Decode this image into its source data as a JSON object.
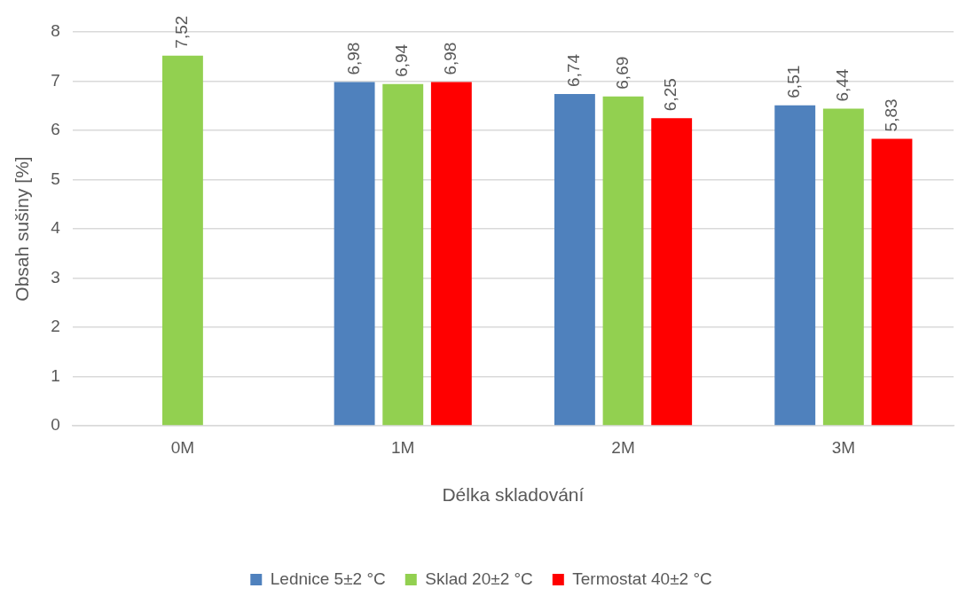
{
  "chart_data": {
    "type": "bar",
    "xlabel": "Délka skladování",
    "ylabel": "Obsah sušiny [%]",
    "categories": [
      "0M",
      "1M",
      "2M",
      "3M"
    ],
    "series": [
      {
        "name": "Lednice 5±2 °C",
        "color": "#4f81bd",
        "values": [
          null,
          6.98,
          6.74,
          6.51
        ],
        "value_labels": [
          null,
          "6,98",
          "6,74",
          "6,51"
        ]
      },
      {
        "name": "Sklad 20±2 °C",
        "color": "#92d050",
        "values": [
          7.52,
          6.94,
          6.69,
          6.44
        ],
        "value_labels": [
          "7,52",
          "6,94",
          "6,69",
          "6,44"
        ]
      },
      {
        "name": "Termostat 40±2 °C",
        "color": "#ff0000",
        "values": [
          null,
          6.98,
          6.25,
          5.83
        ],
        "value_labels": [
          null,
          "6,98",
          "6,25",
          "5,83"
        ]
      }
    ],
    "ylim": [
      0,
      8
    ],
    "yticks": [
      0,
      1,
      2,
      3,
      4,
      5,
      6,
      7,
      8
    ],
    "grid": "y",
    "legend": "bottom"
  }
}
